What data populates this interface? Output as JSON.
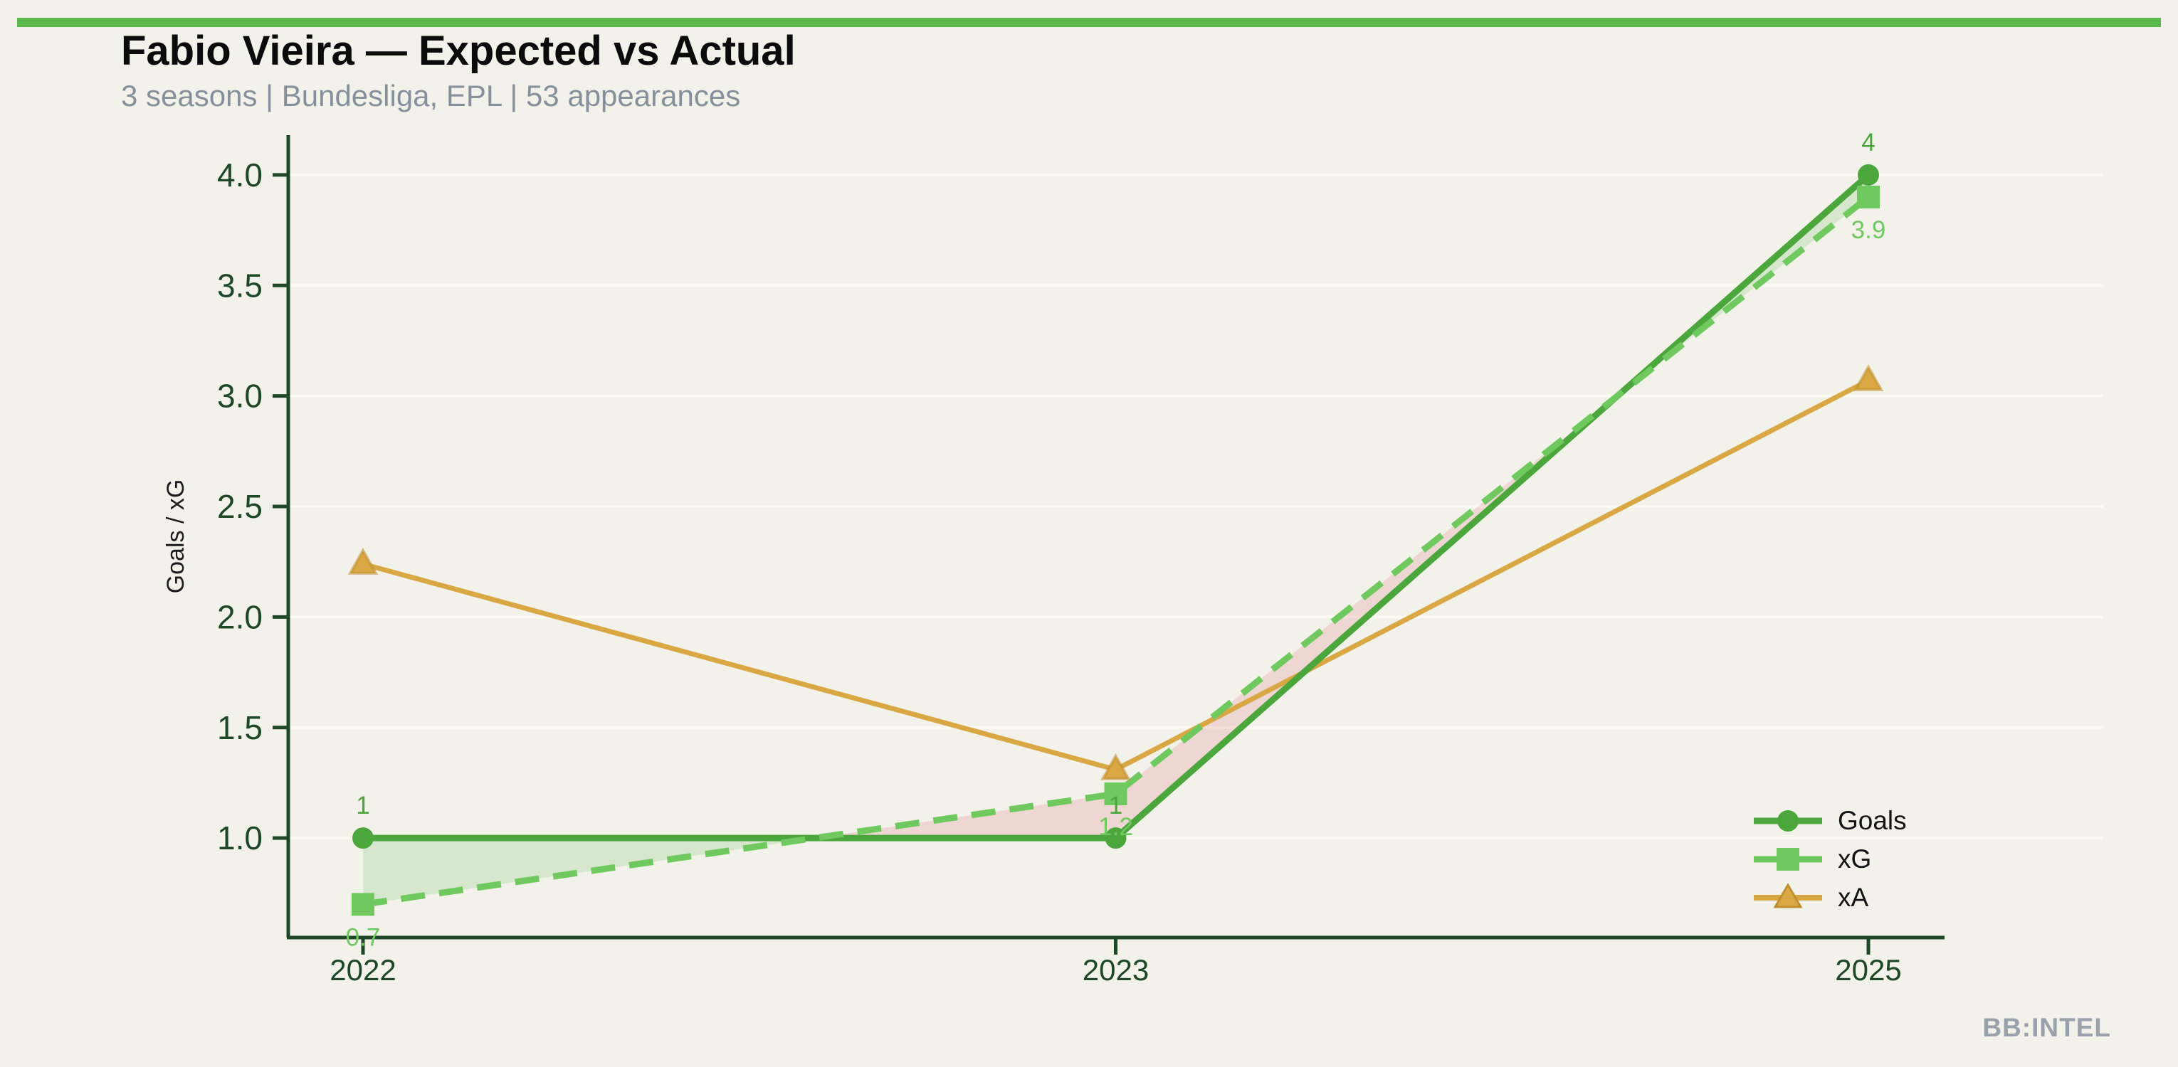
{
  "page": {
    "background_color": "#f2f2eb",
    "accent_bar_color": "#5bb84b",
    "watermark": "BB:INTEL"
  },
  "header": {
    "title": "Fabio Vieira — Expected vs Actual",
    "subtitle": "3 seasons | Bundesliga, EPL | 53 appearances"
  },
  "chart_data": {
    "type": "line",
    "title": "Fabio Vieira — Expected vs Actual",
    "subtitle": "3 seasons | Bundesliga, EPL | 53 appearances",
    "categories": [
      "2022",
      "2023",
      "2025"
    ],
    "series": [
      {
        "name": "Goals",
        "values": [
          1,
          1,
          4
        ],
        "point_labels": [
          "1",
          "1",
          "4"
        ],
        "label_side": "above",
        "color": "#4ba63c",
        "marker": "circle",
        "line_style": "solid"
      },
      {
        "name": "xG",
        "values": [
          0.7,
          1.2,
          3.9
        ],
        "point_labels": [
          "0.7",
          "1.2",
          "3.9"
        ],
        "label_side": "below",
        "color": "#70c95f",
        "marker": "square",
        "line_style": "dashed"
      },
      {
        "name": "xA",
        "values": [
          2.24,
          1.31,
          3.07
        ],
        "point_labels": [
          "",
          "",
          ""
        ],
        "label_side": "above",
        "color": "#d9a844",
        "marker": "triangle",
        "line_style": "solid"
      }
    ],
    "band": {
      "between": [
        "Goals",
        "xG"
      ],
      "positive_color": "rgba(91,184,75,0.18)",
      "negative_color": "rgba(224,110,110,0.20)"
    },
    "xlabel": "",
    "ylabel": "Goals / xG",
    "ylim": [
      0.55,
      4.18
    ],
    "yticks": [
      1.0,
      1.5,
      2.0,
      2.5,
      3.0,
      3.5,
      4.0
    ],
    "ytick_format_decimals": 1,
    "grid": "horizontal-faint",
    "legend_position": "right-bottom",
    "colors": {
      "axis": "#1d4726",
      "grid": "#fafaf3",
      "tick_label": "#1d4726"
    }
  }
}
